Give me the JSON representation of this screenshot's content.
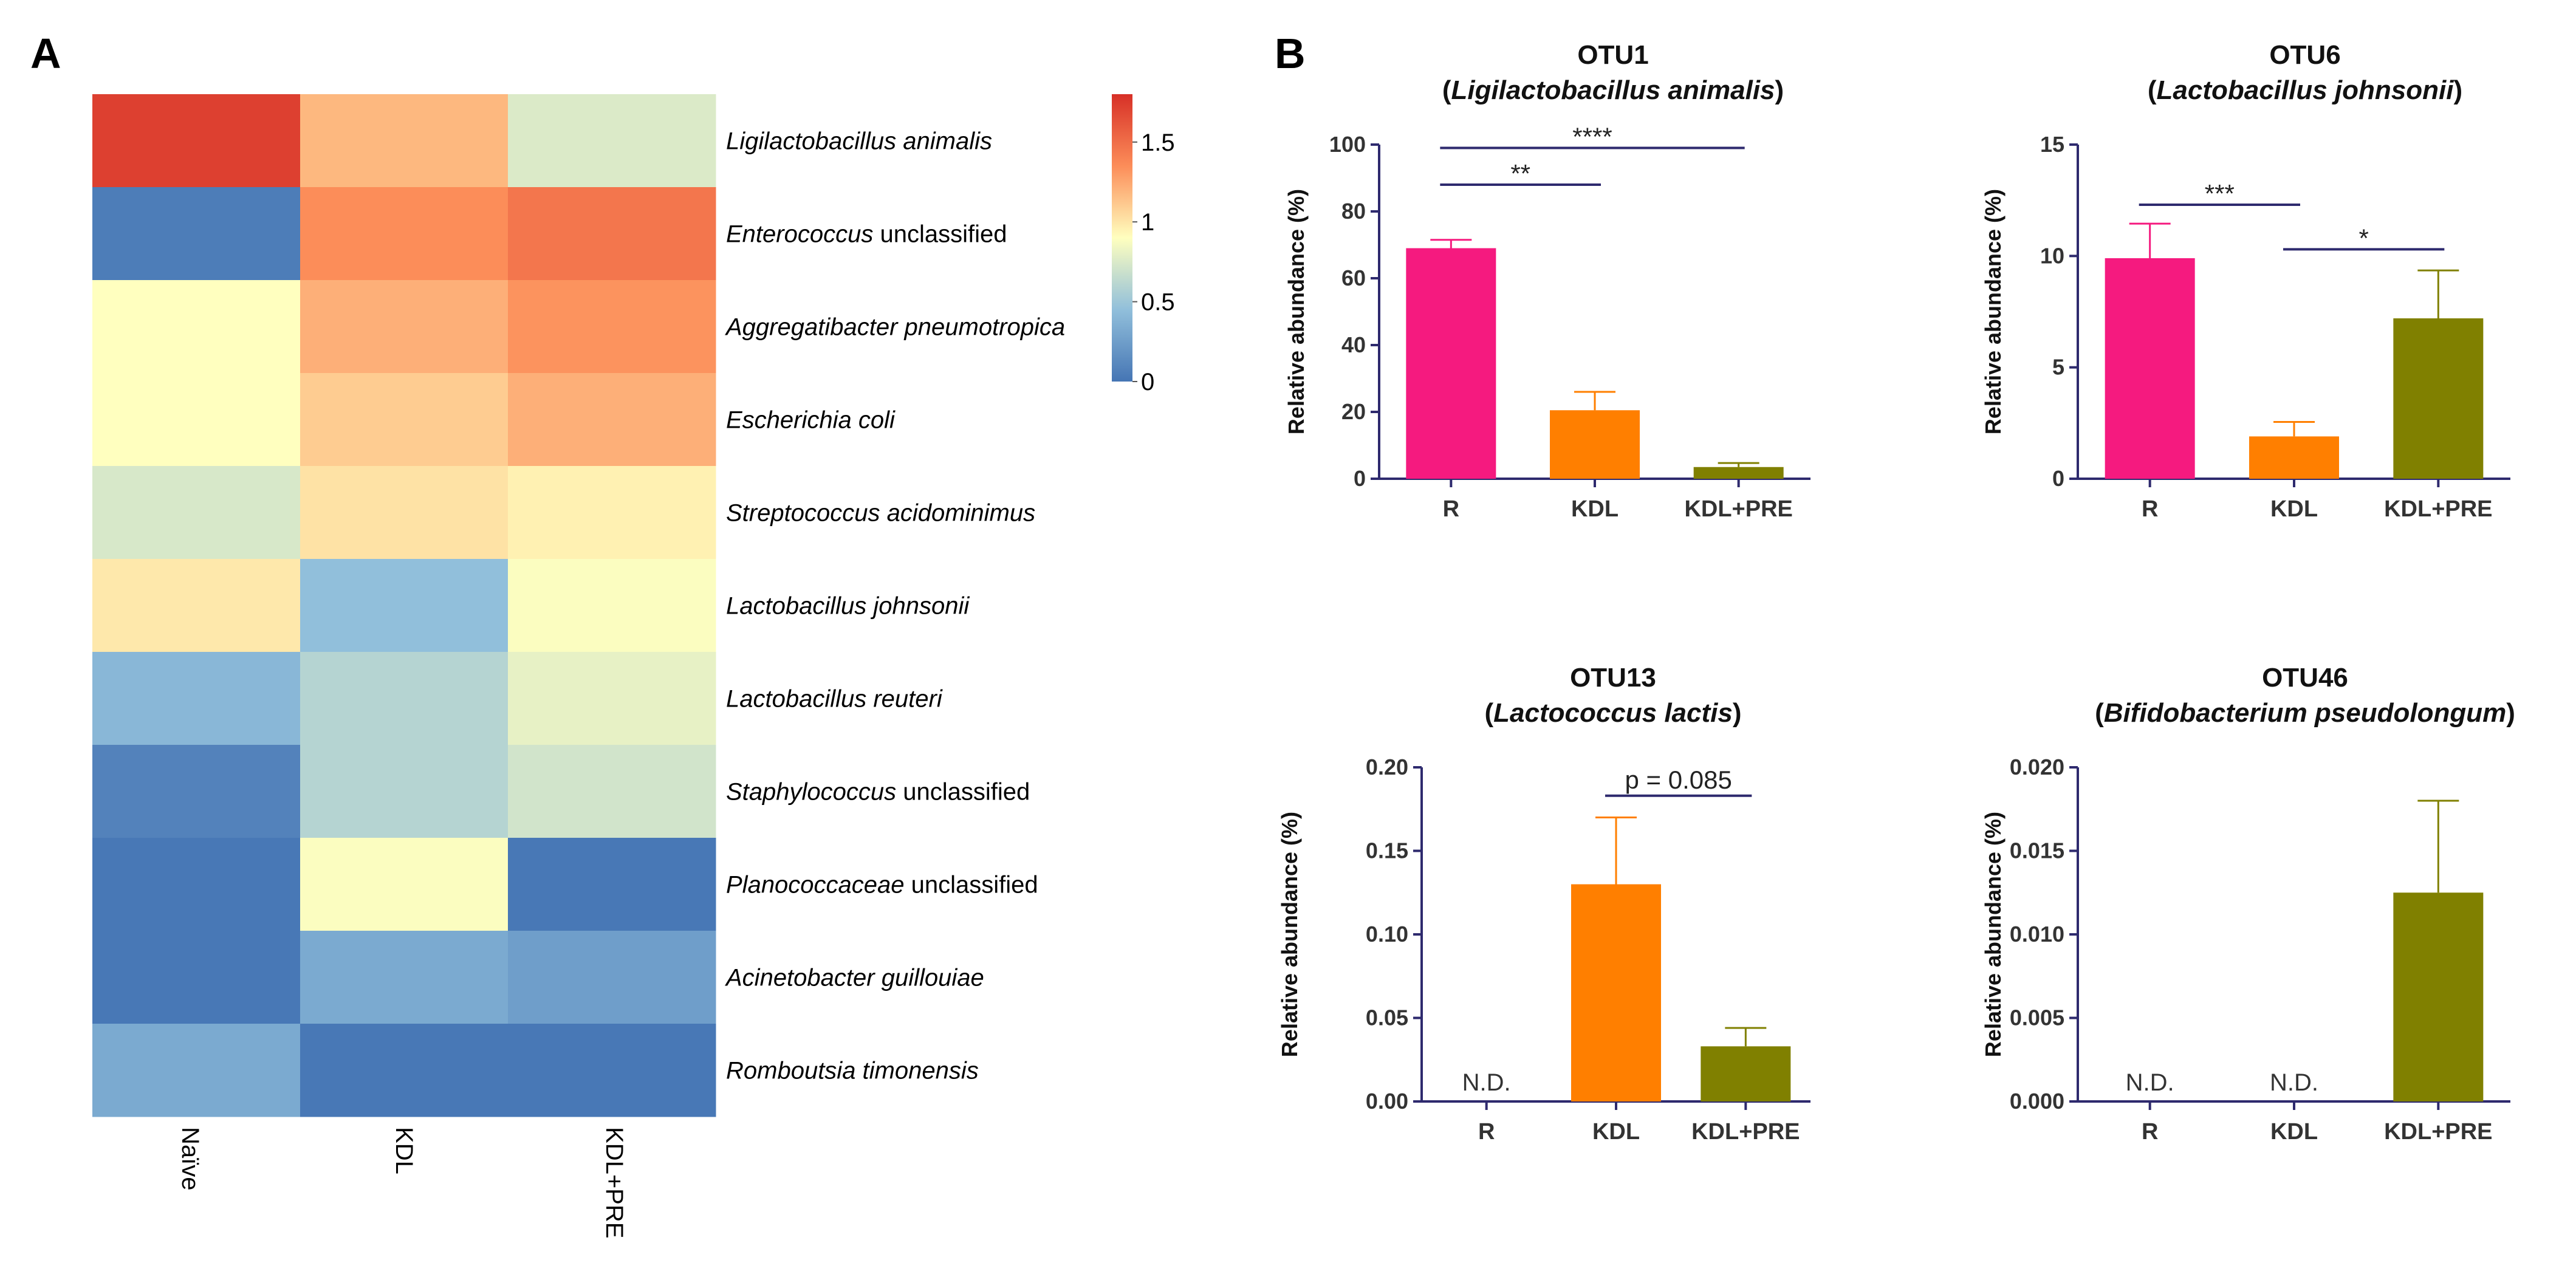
{
  "panels": {
    "a": "A",
    "b": "B"
  },
  "heatmap": {
    "columns": [
      "Naïve",
      "KDL",
      "KDL+PRE"
    ],
    "rows": [
      {
        "italic": "Ligilactobacillus animalis",
        "rest": ""
      },
      {
        "italic": "Enterococcus",
        "rest": " unclassified"
      },
      {
        "italic": "Aggregatibacter pneumotropica",
        "rest": ""
      },
      {
        "italic": "Escherichia coli",
        "rest": ""
      },
      {
        "italic": "Streptococcus acidominimus",
        "rest": ""
      },
      {
        "italic": "Lactobacillus johnsonii",
        "rest": ""
      },
      {
        "italic": "Lactobacillus reuteri",
        "rest": ""
      },
      {
        "italic": "Staphylococcus",
        "rest": " unclassified"
      },
      {
        "italic": "Planococcaceae",
        "rest": " unclassified"
      },
      {
        "italic": "Acinetobacter guillouiae",
        "rest": ""
      },
      {
        "italic": "Romboutsia timonensis",
        "rest": ""
      }
    ],
    "values": [
      [
        1.73,
        1.25,
        0.82
      ],
      [
        0.05,
        1.4,
        1.5
      ],
      [
        1.0,
        1.28,
        1.38
      ],
      [
        1.0,
        1.18,
        1.28
      ],
      [
        0.8,
        1.1,
        1.05
      ],
      [
        1.08,
        0.45,
        0.98
      ],
      [
        0.4,
        0.63,
        0.88
      ],
      [
        0.08,
        0.63,
        0.77
      ],
      [
        0.02,
        0.98,
        0.02
      ],
      [
        0.02,
        0.32,
        0.25
      ],
      [
        0.32,
        0.02,
        0.02
      ]
    ],
    "colorbar": {
      "min": 0,
      "max": 1.8,
      "ticks": [
        "1.5",
        "1",
        "0.5",
        "0"
      ],
      "tick_values": [
        1.5,
        1,
        0.5,
        0
      ]
    },
    "colors": {
      "low": "#4575b4",
      "mid": "#ffffbf",
      "high": "#d73027"
    }
  },
  "chart_data": [
    {
      "type": "bar",
      "title": "OTU1",
      "subtitle": "Ligilactobacillus animalis",
      "categories": [
        "R",
        "KDL",
        "KDL+PRE"
      ],
      "values": [
        69,
        20.5,
        3.5
      ],
      "errors": [
        2.5,
        5.5,
        1.2
      ],
      "nd": [
        false,
        false,
        false
      ],
      "colors": [
        "#f51a7f",
        "#ff7f00",
        "#808000"
      ],
      "ylabel": "Relative abundance (%)",
      "ylim": [
        0,
        100
      ],
      "yticks": [
        "0",
        "20",
        "40",
        "60",
        "80",
        "100"
      ],
      "ytick_values": [
        0,
        20,
        40,
        60,
        80,
        100
      ],
      "significance": [
        {
          "from": 0,
          "to": 1,
          "y": 88,
          "label": "**"
        },
        {
          "from": 0,
          "to": 2,
          "y": 99,
          "label": "****"
        }
      ]
    },
    {
      "type": "bar",
      "title": "OTU6",
      "subtitle": "Lactobacillus johnsonii",
      "categories": [
        "R",
        "KDL",
        "KDL+PRE"
      ],
      "values": [
        9.9,
        1.9,
        7.2
      ],
      "errors": [
        1.55,
        0.65,
        2.15
      ],
      "nd": [
        false,
        false,
        false
      ],
      "colors": [
        "#f51a7f",
        "#ff7f00",
        "#808000"
      ],
      "ylabel": "Relative abundance (%)",
      "ylim": [
        0,
        15
      ],
      "yticks": [
        "0",
        "5",
        "10",
        "15"
      ],
      "ytick_values": [
        0,
        5,
        10,
        15
      ],
      "significance": [
        {
          "from": 0,
          "to": 1,
          "y": 12.3,
          "label": "***"
        },
        {
          "from": 1,
          "to": 2,
          "y": 10.3,
          "label": "*"
        }
      ]
    },
    {
      "type": "bar",
      "title": "OTU13",
      "subtitle": "Lactococcus lactis",
      "categories": [
        "R",
        "KDL",
        "KDL+PRE"
      ],
      "values": [
        0,
        0.13,
        0.033
      ],
      "errors": [
        0,
        0.04,
        0.011
      ],
      "nd": [
        true,
        false,
        false
      ],
      "nd_label": "N.D.",
      "colors": [
        "#f51a7f",
        "#ff7f00",
        "#808000"
      ],
      "ylabel": "Relative abundance (%)",
      "ylim": [
        0,
        0.2
      ],
      "yticks": [
        "0.00",
        "0.05",
        "0.10",
        "0.15",
        "0.20"
      ],
      "ytick_values": [
        0,
        0.05,
        0.1,
        0.15,
        0.2
      ],
      "significance": [
        {
          "from": 1,
          "to": 2,
          "y": 0.183,
          "label": "p = 0.085"
        }
      ]
    },
    {
      "type": "bar",
      "title": "OTU46",
      "subtitle": "Bifidobacterium pseudolongum",
      "categories": [
        "R",
        "KDL",
        "KDL+PRE"
      ],
      "values": [
        0,
        0,
        0.0125
      ],
      "errors": [
        0,
        0,
        0.0055
      ],
      "nd": [
        true,
        true,
        false
      ],
      "nd_label": "N.D.",
      "colors": [
        "#f51a7f",
        "#ff7f00",
        "#808000"
      ],
      "ylabel": "Relative abundance (%)",
      "ylim": [
        0,
        0.02
      ],
      "yticks": [
        "0.000",
        "0.005",
        "0.010",
        "0.015",
        "0.020"
      ],
      "ytick_values": [
        0,
        0.005,
        0.01,
        0.015,
        0.02
      ],
      "significance": []
    }
  ]
}
